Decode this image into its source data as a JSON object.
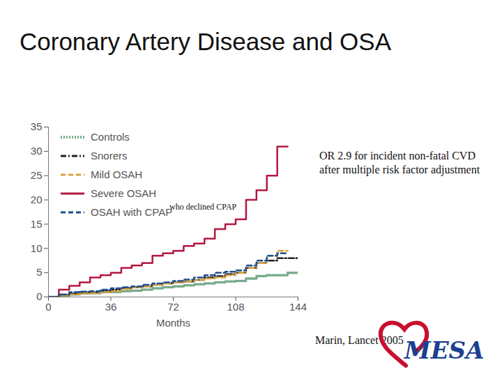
{
  "chart_data": {
    "type": "line",
    "title": "Coronary Artery Disease and OSA",
    "x_label": "Months",
    "xlim": [
      0,
      144
    ],
    "xticks": [
      0,
      36,
      72,
      108,
      144
    ],
    "ylim": [
      0,
      35
    ],
    "yticks": [
      0,
      5,
      10,
      15,
      20,
      25,
      30,
      35
    ],
    "grid": false,
    "legend": "top-left",
    "x": [
      0,
      6,
      12,
      18,
      24,
      30,
      36,
      42,
      48,
      54,
      60,
      66,
      72,
      78,
      84,
      90,
      96,
      102,
      108,
      114,
      120,
      126,
      132,
      138,
      144
    ],
    "series": [
      {
        "name": "Controls",
        "color": "#79ab8e",
        "line_style": "dotted",
        "values": [
          0,
          0.3,
          0.5,
          0.7,
          0.8,
          1,
          1,
          1.2,
          1.3,
          1.5,
          1.8,
          2,
          2.2,
          2.4,
          2.6,
          2.8,
          3,
          3.2,
          3.3,
          3.8,
          4.3,
          4.5,
          4.5,
          5,
          5
        ]
      },
      {
        "name": "Snorers",
        "color": "#222222",
        "line_style": "dashdot",
        "values": [
          0,
          0.5,
          0.7,
          1,
          1,
          1.3,
          1.5,
          1.8,
          2,
          2.2,
          2.5,
          2.8,
          3,
          3.2,
          3.5,
          4,
          4.3,
          4.7,
          5,
          6,
          7,
          7.5,
          8,
          8,
          8
        ]
      },
      {
        "name": "Mild OSAH",
        "color": "#d9a03a",
        "line_style": "dashed",
        "values": [
          0,
          0.3,
          0.5,
          0.7,
          0.8,
          1,
          1.2,
          1.6,
          2,
          2.2,
          2.5,
          2.8,
          3,
          3.2,
          3.5,
          3.8,
          4,
          4.5,
          5,
          6,
          7,
          8.5,
          9.5,
          9.5,
          null
        ]
      },
      {
        "name": "Severe OSAH",
        "color": "#b3173f",
        "line_style": "solid",
        "values": [
          0,
          1.5,
          2.3,
          3,
          4,
          4.5,
          5,
          6,
          6.5,
          7,
          8.5,
          9,
          9.5,
          10.5,
          11,
          12,
          14,
          15,
          16,
          20,
          22,
          25,
          31,
          31,
          null
        ]
      },
      {
        "name": "OSAH with CPAP",
        "color": "#1f4f8e",
        "line_style": "dashed",
        "values": [
          0,
          0.5,
          1,
          1.1,
          1.2,
          1.5,
          1.8,
          2,
          2.2,
          2.5,
          2.8,
          3,
          3.3,
          3.6,
          4,
          4.5,
          5,
          5.2,
          5.5,
          6.5,
          7.5,
          8.5,
          9,
          9,
          null
        ]
      }
    ],
    "annotations": [
      "who declined CPAP",
      "OR 2.9 for incident non-fatal CVD after multiple risk factor adjustment"
    ],
    "source": "Marin, Lancet 2005",
    "logo": "MESA"
  }
}
